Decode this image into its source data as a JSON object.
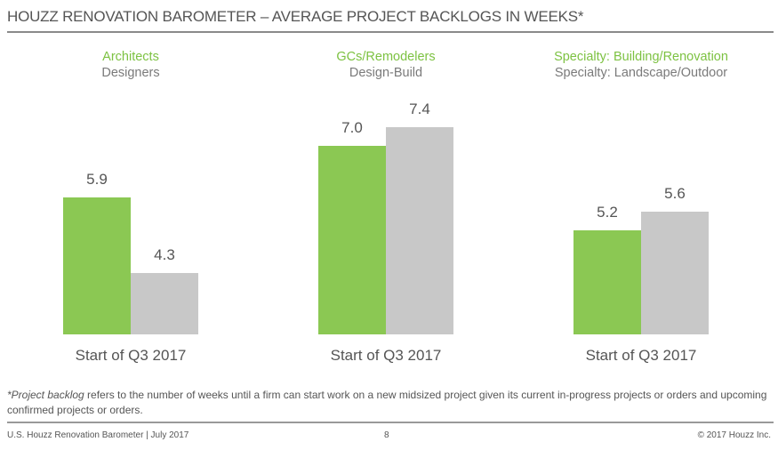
{
  "title": "HOUZZ RENOVATION BAROMETER – AVERAGE PROJECT BACKLOGS IN WEEKS*",
  "colors": {
    "primary": "#8bc853",
    "secondary": "#c8c8c8"
  },
  "chart_data": [
    {
      "type": "bar",
      "series": [
        {
          "name": "Architects",
          "value": 5.9
        },
        {
          "name": "Designers",
          "value": 4.3
        }
      ],
      "categories": [
        "Start of Q3 2017"
      ],
      "labels": [
        "5.9",
        "4.3"
      ]
    },
    {
      "type": "bar",
      "series": [
        {
          "name": "GCs/Remodelers",
          "value": 7.0
        },
        {
          "name": "Design-Build",
          "value": 7.4
        }
      ],
      "categories": [
        "Start of Q3 2017"
      ],
      "labels": [
        "7.0",
        "7.4"
      ]
    },
    {
      "type": "bar",
      "series": [
        {
          "name": "Specialty: Building/Renovation",
          "value": 5.2
        },
        {
          "name": "Specialty: Landscape/Outdoor",
          "value": 5.6
        }
      ],
      "categories": [
        "Start of Q3 2017"
      ],
      "labels": [
        "5.2",
        "5.6"
      ]
    }
  ],
  "footnote": {
    "italic": "*Project backlog",
    "rest": " refers to the number of weeks until a firm can start work on a new midsized project given its current in-progress projects or orders and upcoming confirmed projects or orders."
  },
  "footer": {
    "left": "U.S. Houzz Renovation Barometer | July 2017",
    "page": "8",
    "right": "© 2017 Houzz Inc."
  }
}
